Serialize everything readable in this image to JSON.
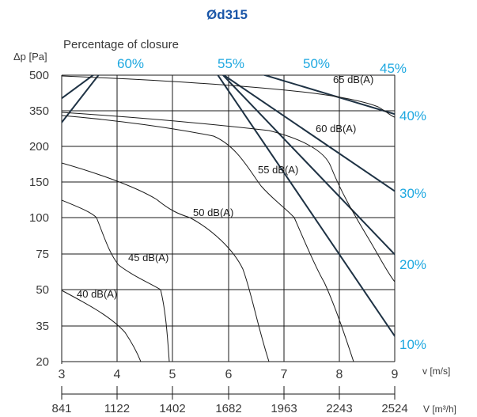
{
  "chart_data": {
    "type": "line",
    "title": "Ød315",
    "subtitle": "Percentage of closure",
    "ylabel": "Δp [Pa]",
    "xlabel_velocity": "v [m/s]",
    "xlabel_flow": "V [m³/h]",
    "y_ticks": [
      "20",
      "35",
      "50",
      "75",
      "100",
      "150",
      "200",
      "350",
      "500"
    ],
    "x_ticks_velocity": [
      "3",
      "4",
      "5",
      "6",
      "7",
      "8",
      "9"
    ],
    "x_ticks_flow": [
      "841",
      "1122",
      "1402",
      "1682",
      "1963",
      "2243",
      "2524"
    ],
    "xlim_velocity": [
      3,
      9
    ],
    "xlim_flow": [
      841,
      2524
    ],
    "grid": true,
    "closure_lines": [
      {
        "name": "60%",
        "label_position": "top"
      },
      {
        "name": "55%",
        "label_position": "top"
      },
      {
        "name": "50%",
        "label_position": "top"
      },
      {
        "name": "45%",
        "label_position": "top"
      },
      {
        "name": "40%",
        "label_position": "right"
      },
      {
        "name": "30%",
        "label_position": "right"
      },
      {
        "name": "20%",
        "label_position": "right"
      },
      {
        "name": "10%",
        "label_position": "right"
      }
    ],
    "noise_curves": [
      {
        "name": "40 dB(A)"
      },
      {
        "name": "45 dB(A)"
      },
      {
        "name": "50 dB(A)"
      },
      {
        "name": "55 dB(A)"
      },
      {
        "name": "60 dB(A)"
      },
      {
        "name": "65 dB(A)"
      }
    ],
    "colors": {
      "title": "#1a56a8",
      "closure_label": "#1ea8e0",
      "closure_line": "#1e3244",
      "grid": "#1a1a1a",
      "noise_curve": "#1a1a1a",
      "text": "#3a3a3a"
    }
  }
}
